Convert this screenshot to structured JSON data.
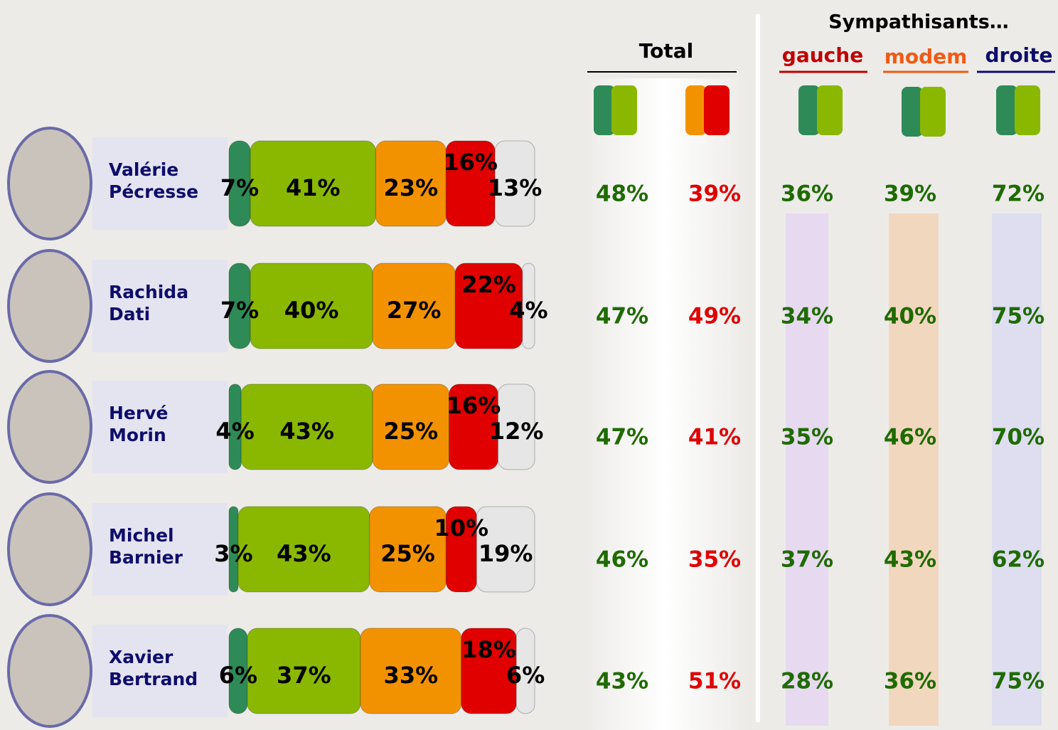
{
  "chart_data": {
    "type": "stacked-bar",
    "categories": [
      "Valérie Pécresse",
      "Rachida Dati",
      "Hervé Morin",
      "Michel Barnier",
      "Xavier Bertrand"
    ],
    "series": [
      {
        "color": "#2e8b57",
        "values": [
          7,
          7,
          4,
          3,
          6
        ],
        "value_labels": [
          "7%",
          "7%",
          "4%",
          "3%",
          "6%"
        ]
      },
      {
        "color": "#8ab800",
        "values": [
          41,
          40,
          43,
          43,
          37
        ],
        "value_labels": [
          "41%",
          "40%",
          "43%",
          "43%",
          "37%"
        ]
      },
      {
        "color": "#f39200",
        "values": [
          23,
          27,
          25,
          25,
          33
        ],
        "value_labels": [
          "23%",
          "27%",
          "25%",
          "25%",
          "33%"
        ]
      },
      {
        "color": "#e00000",
        "values": [
          16,
          22,
          16,
          10,
          18
        ],
        "value_labels": [
          "16%",
          "22%",
          "16%",
          "10%",
          "18%"
        ]
      },
      {
        "color": "#e6e6e6",
        "values": [
          13,
          4,
          12,
          19,
          6
        ],
        "value_labels": [
          "13%",
          "4%",
          "12%",
          "19%",
          "6%"
        ]
      }
    ]
  },
  "table": {
    "total_title": "Total",
    "group_title": "Sympathisants…",
    "columns": [
      "gauche",
      "modem",
      "droite"
    ],
    "rows": [
      [
        "48%",
        "39%",
        "36%",
        "39%",
        "72%"
      ],
      [
        "47%",
        "49%",
        "34%",
        "40%",
        "75%"
      ],
      [
        "47%",
        "41%",
        "35%",
        "46%",
        "70%"
      ],
      [
        "46%",
        "35%",
        "37%",
        "43%",
        "62%"
      ],
      [
        "43%",
        "51%",
        "28%",
        "36%",
        "75%"
      ]
    ]
  }
}
